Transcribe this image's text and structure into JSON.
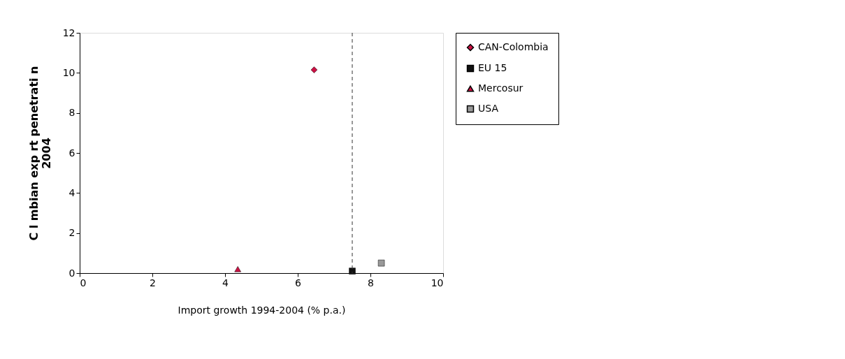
{
  "chart_data": {
    "type": "scatter",
    "xlabel": "Import growth 1994-2004 (% p.a.)",
    "ylabel": "C l mbian exp rt penetrati n 2004",
    "xlim": [
      0,
      10
    ],
    "xticks": [
      0,
      2,
      4,
      6,
      8,
      10
    ],
    "ylim": [
      0,
      12
    ],
    "yticks": [
      0,
      2,
      4,
      6,
      8,
      10,
      12
    ],
    "grid": false,
    "legend": "right",
    "series": [
      {
        "name": "CAN-Colombia",
        "color": "#cc1144",
        "marker": "diamond",
        "x": [
          6.45
        ],
        "values": [
          10.15
        ]
      },
      {
        "name": "EU 15",
        "color": "#111111",
        "marker": "square",
        "x": [
          7.5
        ],
        "values": [
          0.1
        ]
      },
      {
        "name": "Mercosur",
        "color": "#cc1144",
        "marker": "triangle",
        "x": [
          4.35
        ],
        "values": [
          0.2
        ]
      },
      {
        "name": "USA",
        "color": "#999999",
        "marker": "square",
        "x": [
          8.3
        ],
        "values": [
          0.5
        ]
      }
    ],
    "ref_lines": [
      {
        "axis": "x",
        "value": 7.5,
        "line_style": "dashed",
        "color": "#333333"
      }
    ]
  }
}
